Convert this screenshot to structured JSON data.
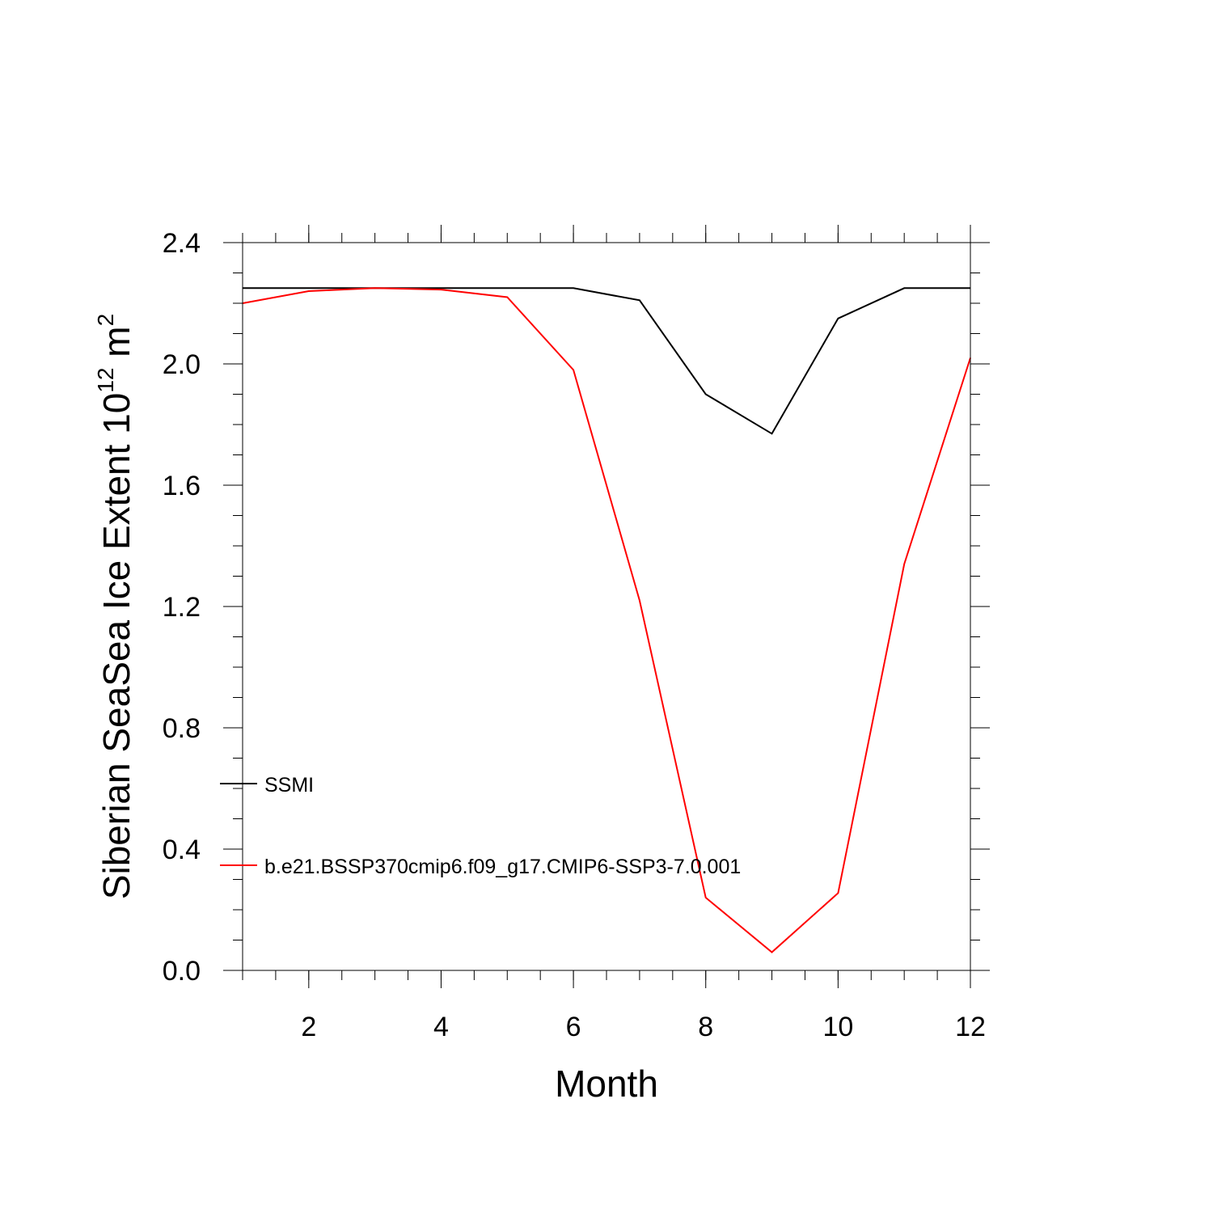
{
  "chart_data": {
    "type": "line",
    "xlabel": "Month",
    "ylabel_main": "Siberian SeaSea Ice Extent 10",
    "ylabel_sup": "12",
    "ylabel_unit": " m",
    "ylabel_unit_sup": "2",
    "xlim": [
      1,
      12
    ],
    "ylim": [
      0,
      2.4
    ],
    "x_ticks": [
      2,
      4,
      6,
      8,
      10,
      12
    ],
    "x_tick_labels": [
      "2",
      "4",
      "6",
      "8",
      "10",
      "12"
    ],
    "y_ticks": [
      0,
      0.4,
      0.8,
      1.2,
      1.6,
      2.0,
      2.4
    ],
    "y_tick_labels": [
      "0.0",
      "0.4",
      "0.8",
      "1.2",
      "1.6",
      "2.0",
      "2.4"
    ],
    "grid": false,
    "legend_position": "bottom-left (inside plot)",
    "x": [
      1,
      2,
      3,
      4,
      5,
      6,
      7,
      8,
      9,
      10,
      11,
      12
    ],
    "series": [
      {
        "name": "SSMI",
        "color": "#000000",
        "values": [
          2.25,
          2.25,
          2.25,
          2.25,
          2.25,
          2.25,
          2.21,
          1.9,
          1.77,
          2.15,
          2.25,
          2.25
        ]
      },
      {
        "name": "b.e21.BSSP370cmip6.f09_g17.CMIP6-SSP3-7.0.001",
        "color": "#ff0000",
        "values": [
          2.2,
          2.24,
          2.25,
          2.245,
          2.22,
          1.98,
          1.22,
          0.24,
          0.06,
          0.255,
          1.34,
          2.02
        ]
      }
    ]
  }
}
